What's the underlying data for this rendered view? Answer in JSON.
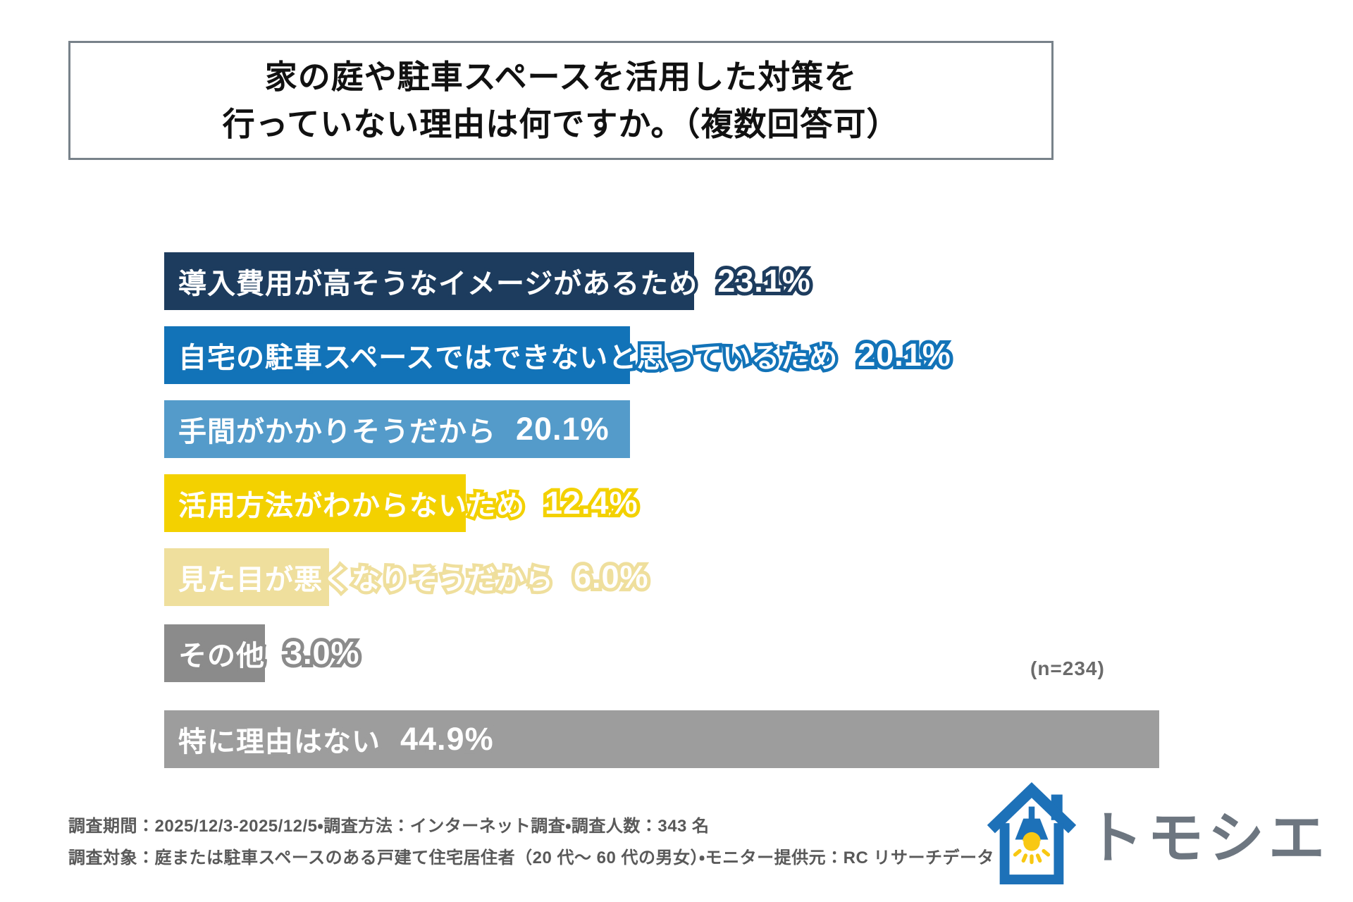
{
  "title": {
    "line1": "家の庭や駐車スペースを活用した対策を",
    "line2": "行っていない理由は何ですか。（複数回答可）"
  },
  "chart_data": {
    "type": "bar",
    "orientation": "horizontal",
    "unit": "%",
    "categories": [
      "導入費用が高そうなイメージがあるため",
      "自宅の駐車スペースではできないと思っているため",
      "手間がかかりそうだから",
      "活用方法がわからないため",
      "見た目が悪くなりそうだから",
      "その他",
      "特に理由はない"
    ],
    "values": [
      23.1,
      20.1,
      20.1,
      12.4,
      6.0,
      3.0,
      44.9
    ],
    "value_labels": [
      "23.1%",
      "20.1%",
      "20.1%",
      "12.4%",
      "6.0%",
      "3.0%",
      "44.9%"
    ],
    "colors": [
      "#1d3c5e",
      "#1273b8",
      "#549bca",
      "#f3d100",
      "#efdf9d",
      "#8b8b8b",
      "#9d9d9d"
    ],
    "sample_note": "(n=234)",
    "xlim": [
      0,
      50
    ],
    "grid": false,
    "axis_labels_shown": false,
    "legend": "none"
  },
  "footer": {
    "line1": "調査期間：2025/12/3-2025/12/5・調査方法：インターネット調査・調査人数：343 名",
    "line2": "調査対象：庭または駐車スペースのある戸建て住宅居住者（20 代～ 60 代の男女）・モニター提供元：RC リサーチデータ"
  },
  "logo": {
    "text": "トモシエ",
    "icon": "house-lamp-icon",
    "colors": {
      "house": "#1d71b8",
      "light": "#f8c812",
      "text": "#6d7680"
    }
  }
}
